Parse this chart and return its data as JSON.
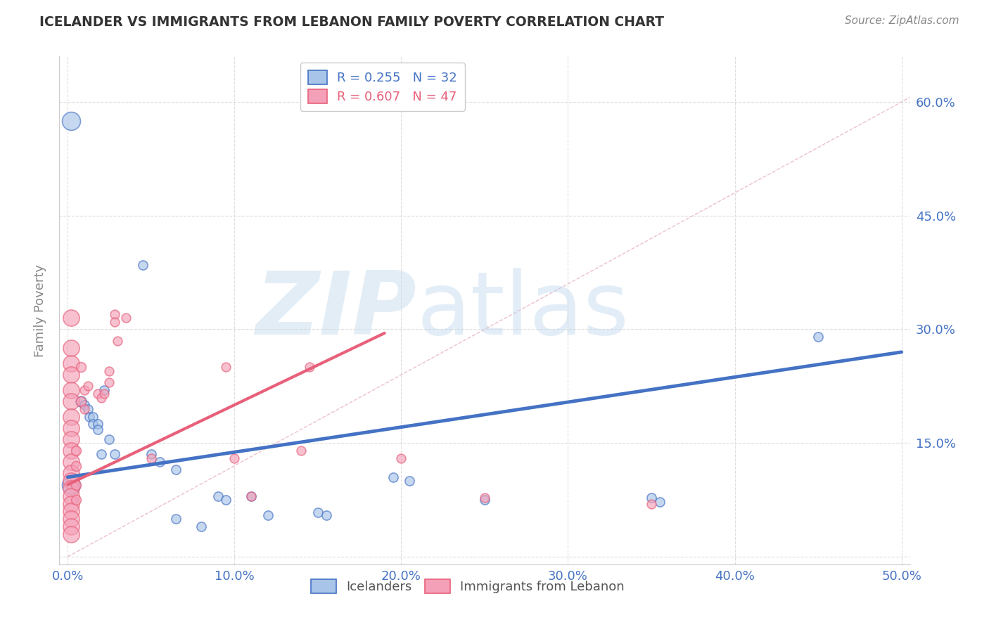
{
  "title": "ICELANDER VS IMMIGRANTS FROM LEBANON FAMILY POVERTY CORRELATION CHART",
  "source": "Source: ZipAtlas.com",
  "ylabel": "Family Poverty",
  "xlim": [
    -0.005,
    0.505
  ],
  "ylim": [
    -0.01,
    0.66
  ],
  "xticks": [
    0.0,
    0.1,
    0.2,
    0.3,
    0.4,
    0.5
  ],
  "yticks": [
    0.0,
    0.15,
    0.3,
    0.45,
    0.6
  ],
  "xticklabels": [
    "0.0%",
    "10.0%",
    "20.0%",
    "30.0%",
    "40.0%",
    "50.0%"
  ],
  "yticklabels_right": [
    "",
    "15.0%",
    "30.0%",
    "45.0%",
    "60.0%"
  ],
  "blue_color": "#4472c4",
  "pink_color": "#e8607a",
  "blue_bubble": "#a8c4e8",
  "pink_bubble": "#f4a0b8",
  "icelanders": [
    [
      0.002,
      0.575
    ],
    [
      0.045,
      0.385
    ],
    [
      0.008,
      0.205
    ],
    [
      0.01,
      0.2
    ],
    [
      0.012,
      0.195
    ],
    [
      0.013,
      0.185
    ],
    [
      0.015,
      0.185
    ],
    [
      0.015,
      0.175
    ],
    [
      0.018,
      0.175
    ],
    [
      0.018,
      0.168
    ],
    [
      0.02,
      0.135
    ],
    [
      0.022,
      0.22
    ],
    [
      0.025,
      0.155
    ],
    [
      0.028,
      0.135
    ],
    [
      0.05,
      0.135
    ],
    [
      0.055,
      0.125
    ],
    [
      0.065,
      0.05
    ],
    [
      0.065,
      0.115
    ],
    [
      0.08,
      0.04
    ],
    [
      0.09,
      0.08
    ],
    [
      0.095,
      0.075
    ],
    [
      0.11,
      0.08
    ],
    [
      0.12,
      0.055
    ],
    [
      0.15,
      0.058
    ],
    [
      0.155,
      0.055
    ],
    [
      0.195,
      0.105
    ],
    [
      0.205,
      0.1
    ],
    [
      0.25,
      0.075
    ],
    [
      0.35,
      0.078
    ],
    [
      0.355,
      0.072
    ],
    [
      0.45,
      0.29
    ],
    [
      0.002,
      0.095
    ]
  ],
  "lebanon": [
    [
      0.002,
      0.315
    ],
    [
      0.002,
      0.275
    ],
    [
      0.002,
      0.255
    ],
    [
      0.002,
      0.24
    ],
    [
      0.002,
      0.22
    ],
    [
      0.002,
      0.205
    ],
    [
      0.002,
      0.185
    ],
    [
      0.002,
      0.17
    ],
    [
      0.002,
      0.155
    ],
    [
      0.002,
      0.14
    ],
    [
      0.002,
      0.125
    ],
    [
      0.002,
      0.11
    ],
    [
      0.002,
      0.1
    ],
    [
      0.002,
      0.09
    ],
    [
      0.002,
      0.08
    ],
    [
      0.002,
      0.07
    ],
    [
      0.002,
      0.06
    ],
    [
      0.002,
      0.05
    ],
    [
      0.002,
      0.04
    ],
    [
      0.002,
      0.03
    ],
    [
      0.005,
      0.14
    ],
    [
      0.005,
      0.12
    ],
    [
      0.005,
      0.095
    ],
    [
      0.005,
      0.075
    ],
    [
      0.008,
      0.25
    ],
    [
      0.008,
      0.205
    ],
    [
      0.01,
      0.22
    ],
    [
      0.01,
      0.195
    ],
    [
      0.012,
      0.225
    ],
    [
      0.018,
      0.215
    ],
    [
      0.02,
      0.21
    ],
    [
      0.022,
      0.215
    ],
    [
      0.025,
      0.245
    ],
    [
      0.025,
      0.23
    ],
    [
      0.028,
      0.32
    ],
    [
      0.028,
      0.31
    ],
    [
      0.03,
      0.285
    ],
    [
      0.035,
      0.315
    ],
    [
      0.05,
      0.13
    ],
    [
      0.095,
      0.25
    ],
    [
      0.1,
      0.13
    ],
    [
      0.11,
      0.08
    ],
    [
      0.14,
      0.14
    ],
    [
      0.145,
      0.25
    ],
    [
      0.2,
      0.13
    ],
    [
      0.25,
      0.078
    ],
    [
      0.35,
      0.07
    ]
  ],
  "blue_line": [
    [
      0.0,
      0.105
    ],
    [
      0.5,
      0.27
    ]
  ],
  "pink_line": [
    [
      0.0,
      0.095
    ],
    [
      0.19,
      0.295
    ]
  ],
  "gray_line_color": "#e8b0c0",
  "gray_line": [
    [
      0.0,
      0.0
    ],
    [
      0.505,
      0.606
    ]
  ]
}
